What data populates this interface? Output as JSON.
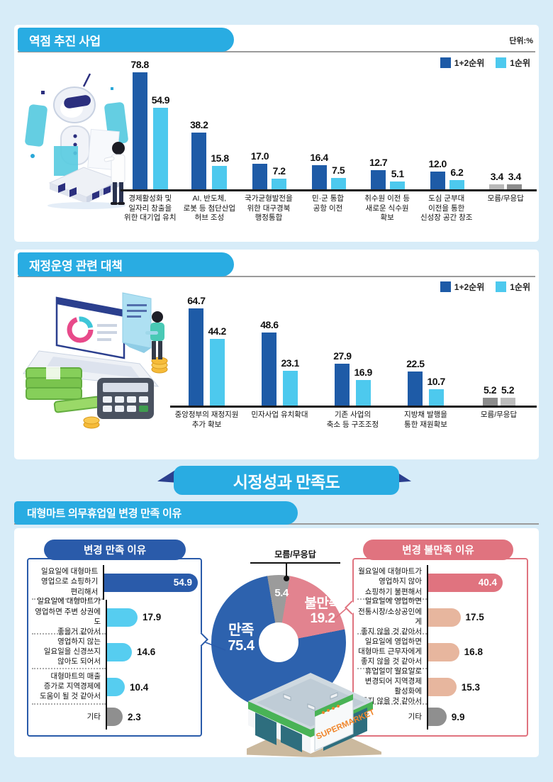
{
  "sections": {
    "ribbon_title": "시정성과 만족도",
    "mart_section_title": "대형마트 의무휴업일 변경 만족 이유"
  },
  "building": {
    "sign": "SUPERMARKET"
  },
  "colors": {
    "background": "#d7ecf8",
    "banner_cyan": "#29ace2",
    "ribbon_navy": "#2b3f8e",
    "rank12_blue": "#1e5ba7",
    "rank1_cyan": "#4dc9ee",
    "satisfy_blue": "#2a5baa",
    "dissatisfy_pink": "#e0737f",
    "dissatisfy_tan": "#e7b69e",
    "etc_gray": "#8f8f8f",
    "donut_blue": "#2d62ae",
    "donut_pink": "#e2838f",
    "donut_gray": "#9b9b9b"
  },
  "chart_data": [
    {
      "id": "key_projects",
      "type": "bar",
      "title": "역점 추진 사업",
      "unit": "단위:%",
      "legend": [
        "1+2순위",
        "1순위"
      ],
      "legend_colors": [
        "#1e5ba7",
        "#4dc9ee"
      ],
      "categories": [
        "경제활성화 및\n일자리 창출을\n위한 대기업 유치",
        "AI, 반도체,\n로봇 등 첨단산업\n허브 조성",
        "국가균형발전을\n위한 대구경북\n행정통합",
        "민·군 통합\n공항 이전",
        "취수원 이전 등\n새로운 식수원\n확보",
        "도심 군부대\n이전을 통한\n신성장 공간 창조",
        "모름/무응답"
      ],
      "series": [
        {
          "name": "1+2순위",
          "values": [
            78.8,
            38.2,
            17.0,
            16.4,
            12.7,
            12.0,
            3.4
          ]
        },
        {
          "name": "1순위",
          "values": [
            54.9,
            15.8,
            7.2,
            7.5,
            5.1,
            6.2,
            3.4
          ]
        }
      ],
      "unknown_category_colors": [
        "#b9b9b9",
        "#8c8c8c"
      ]
    },
    {
      "id": "finance_measures",
      "type": "bar",
      "title": "재정운영 관련 대책",
      "legend": [
        "1+2순위",
        "1순위"
      ],
      "legend_colors": [
        "#1e5ba7",
        "#4dc9ee"
      ],
      "categories": [
        "중앙정부의 재정지원\n추가 확보",
        "민자사업 유치확대",
        "기존 사업의\n축소 등 구조조정",
        "지방채 발행을\n통한 재원확보",
        "모름/무응답"
      ],
      "series": [
        {
          "name": "1+2순위",
          "values": [
            64.7,
            48.6,
            27.9,
            22.5,
            5.2
          ]
        },
        {
          "name": "1순위",
          "values": [
            44.2,
            23.1,
            16.9,
            10.7,
            5.2
          ]
        }
      ],
      "unknown_category_colors": [
        "#8c8c8c",
        "#bdbdbd"
      ]
    },
    {
      "id": "satisfied_reasons",
      "type": "bar",
      "orientation": "horizontal",
      "title": "변경 만족 이유",
      "items": [
        {
          "label": "일요일에 대형마트\n영업으로 쇼핑하기\n편리해서",
          "value": 54.9,
          "color": "#2a5baa",
          "value_inside": true
        },
        {
          "label": "일요일에 대형마트가\n영업하면 주변 상권에도\n좋을거 같아서",
          "value": 17.9,
          "color": "#56cdf0"
        },
        {
          "label": "영업하지 않는\n일요일을 신경쓰지\n않아도 되어서",
          "value": 14.6,
          "color": "#56cdf0"
        },
        {
          "label": "대형마트의 매출\n증가로 지역경제에\n도움이 될 것 같아서",
          "value": 10.4,
          "color": "#56cdf0"
        },
        {
          "label": "기타",
          "value": 2.3,
          "color": "#8f8f8f"
        }
      ]
    },
    {
      "id": "dissatisfied_reasons",
      "type": "bar",
      "orientation": "horizontal",
      "title": "변경 불만족 이유",
      "items": [
        {
          "label": "월요일에 대형마트가\n영업하지 않아\n쇼핑하기 불편해서",
          "value": 40.4,
          "color": "#e0737f",
          "value_inside": true
        },
        {
          "label": "일요일에 영업하면\n전통시장/소상공인에게\n좋지 않을 것 같아서",
          "value": 17.5,
          "color": "#e7b69e"
        },
        {
          "label": "일요일에 영업하면\n대형마트 근무자에게\n좋지 않을 것 같아서",
          "value": 16.8,
          "color": "#e7b69e"
        },
        {
          "label": "휴업일이 월요일로\n변경되어 지역경제 활성화에\n좋지 않을 것 같아서",
          "value": 15.3,
          "color": "#e7b69e"
        },
        {
          "label": "기타",
          "value": 9.9,
          "color": "#8f8f8f"
        }
      ]
    },
    {
      "id": "satisfaction_donut",
      "type": "pie",
      "segments": [
        {
          "label": "만족",
          "value": 75.4,
          "color": "#2d62ae"
        },
        {
          "label": "불만족",
          "value": 19.2,
          "color": "#e2838f"
        },
        {
          "label": "모름/무응답",
          "value": 5.4,
          "color": "#9b9b9b"
        }
      ]
    }
  ]
}
